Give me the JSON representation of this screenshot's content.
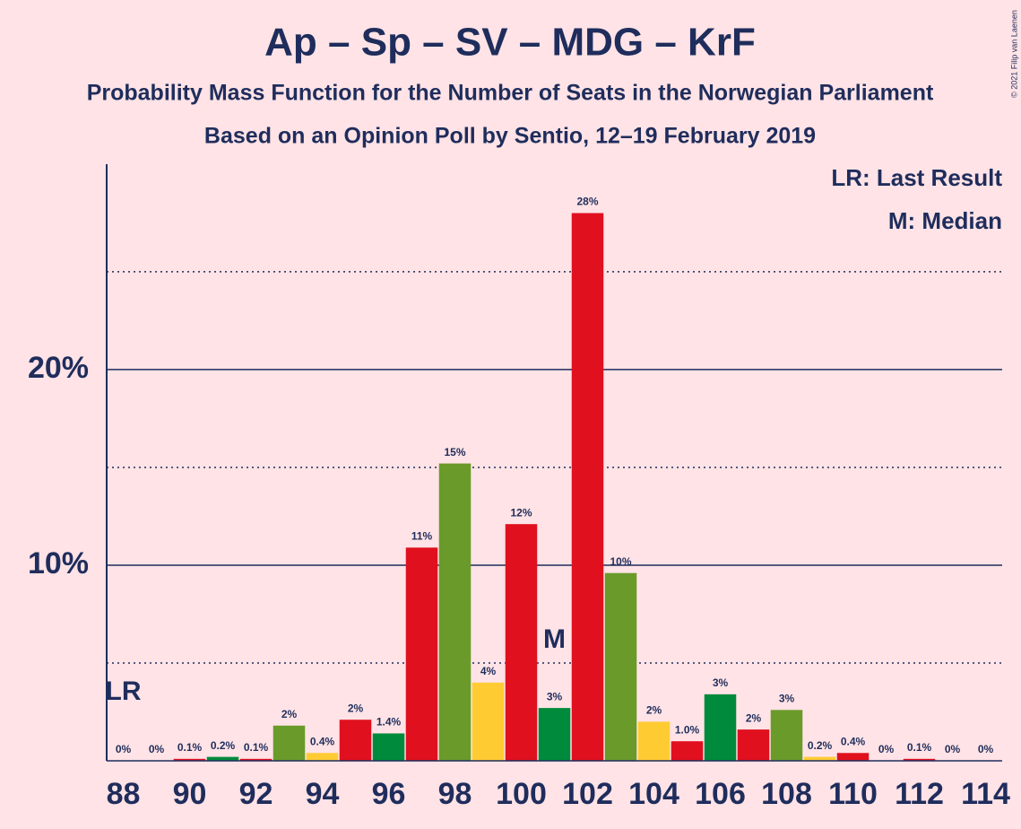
{
  "chart_data": {
    "type": "bar",
    "title": "Ap – Sp – SV – MDG – KrF",
    "subtitle": "Probability Mass Function for the Number of Seats in the Norwegian Parliament",
    "subtitle2": "Based on an Opinion Poll by Sentio, 12–19 February 2019",
    "x": [
      88,
      89,
      90,
      91,
      92,
      93,
      94,
      95,
      96,
      97,
      98,
      99,
      100,
      101,
      102,
      103,
      104,
      105,
      106,
      107,
      108,
      109,
      110,
      111,
      112,
      113,
      114
    ],
    "values": [
      0,
      0,
      0.1,
      0.2,
      0.1,
      1.8,
      0.4,
      2.1,
      1.4,
      10.9,
      15.2,
      4.0,
      12.1,
      2.7,
      28.0,
      9.6,
      2.0,
      1.0,
      3.4,
      1.6,
      2.6,
      0.2,
      0.4,
      0,
      0.1,
      0,
      0
    ],
    "value_labels": [
      "0%",
      "0%",
      "0.1%",
      "0.2%",
      "0.1%",
      "2%",
      "0.4%",
      "2%",
      "1.4%",
      "11%",
      "15%",
      "4%",
      "12%",
      "3%",
      "28%",
      "10%",
      "2%",
      "1.0%",
      "3%",
      "2%",
      "3%",
      "0.2%",
      "0.4%",
      "0%",
      "0.1%",
      "0%",
      "0%"
    ],
    "colors": [
      "#6a9a2a",
      "#ffcb33",
      "#e0101f",
      "#008a3c",
      "#e0101f",
      "#6a9a2a",
      "#ffcb33",
      "#e0101f",
      "#008a3c",
      "#e0101f",
      "#6a9a2a",
      "#ffcb33",
      "#e0101f",
      "#008a3c",
      "#e0101f",
      "#6a9a2a",
      "#ffcb33",
      "#e0101f",
      "#008a3c",
      "#e0101f",
      "#6a9a2a",
      "#ffcb33",
      "#e0101f",
      "#008a3c",
      "#e0101f",
      "#6a9a2a",
      "#ffcb33"
    ],
    "xlim": [
      87.5,
      114.5
    ],
    "xticks": [
      88,
      90,
      92,
      94,
      96,
      98,
      100,
      102,
      104,
      106,
      108,
      110,
      112,
      114
    ],
    "ylim": [
      0,
      30.5
    ],
    "yticks": [
      {
        "value": 10,
        "label": "10%"
      },
      {
        "value": 20,
        "label": "20%"
      }
    ],
    "minor_yticks": [
      5,
      15,
      25
    ],
    "grid": true,
    "annotations": [
      {
        "text": "LR",
        "x": 88
      },
      {
        "text": "M",
        "x": 101
      }
    ],
    "legend": [
      "LR: Last Result",
      "M: Median"
    ],
    "copyright": "© 2021 Filip van Laenen"
  }
}
